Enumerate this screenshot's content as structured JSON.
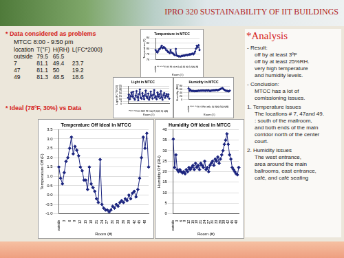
{
  "header": {
    "title": "IPRO 320 SUSTAINABILITY OF IIT BUILDINGS"
  },
  "data_section": {
    "heading": "* Data considered as problems",
    "subheading": "MTCC 8:00 - 9:50 pm",
    "table": {
      "columns": [
        "location",
        "T(°F)",
        "H(RH)",
        "L(FC*2000)"
      ],
      "rows": [
        [
          "outside",
          79.5,
          65.5
        ],
        [
          "7",
          81.1,
          49.4,
          23.7
        ],
        [
          "47",
          81.1,
          50.0,
          19.2
        ],
        [
          "49",
          81.3,
          48.5,
          18.6
        ]
      ]
    }
  },
  "ideal_heading": "* Ideal (78ºF, 30%) vs Data",
  "analysis": {
    "heading": "*Analysis",
    "blocks": [
      {
        "label": "- Result:",
        "lines": [
          "off by at least 3ºF",
          "off by at least 25%RH.",
          "very high temperature",
          "and humidity levels."
        ]
      },
      {
        "label": "- Conclusion:",
        "lines": [
          "MTCC has a lot of",
          "comissioning issues."
        ]
      },
      {
        "label": "1. Temperature issues",
        "lines": [
          "The locations # 7, 47and 49.",
          ": south of the mailroom,",
          "and both ends of the main",
          "corridor north of the center",
          "court."
        ]
      },
      {
        "label": "2. Humidity issues",
        "lines": [
          "The west entrance,",
          "area around the main",
          "ballrooms, east entrance,",
          "café, and café seating"
        ]
      }
    ]
  },
  "chart_data": [
    {
      "type": "line",
      "title": "Temperature in MTCC",
      "x_label": "Room (#)",
      "y_label": "Temperature (F)",
      "categories": [
        "outside",
        null,
        null,
        "3",
        null,
        null,
        "6",
        null,
        null,
        "9",
        null,
        null,
        "12",
        null,
        null,
        "15",
        null,
        null,
        "18",
        null,
        null,
        "21",
        null,
        null,
        "24",
        null,
        null,
        "27",
        null,
        null,
        "30",
        null,
        null,
        "33",
        null,
        null,
        "36",
        null,
        null,
        "39",
        null,
        null,
        "42",
        null,
        null,
        "45",
        null,
        null,
        "48",
        null,
        null
      ],
      "values": [
        79.5,
        78.9,
        78.6,
        79.2,
        79.8,
        80.0,
        80.5,
        81.1,
        80.2,
        80.6,
        80.4,
        80.1,
        79.5,
        79.3,
        78.8,
        78.8,
        78.3,
        79.5,
        78.6,
        78.4,
        78.2,
        77.8,
        77.6,
        79.9,
        77.5,
        77.3,
        77.2,
        77.2,
        77.1,
        77.2,
        77.4,
        77.3,
        77.5,
        77.4,
        77.6,
        77.7,
        77.6,
        77.8,
        77.7,
        78.0,
        77.8,
        78.1,
        78.2,
        77.9,
        78.3,
        78.9,
        80.0,
        81.1,
        80.5,
        81.3,
        79.5
      ],
      "color": "#1a237e",
      "marker": "diamond",
      "line_style": "solid",
      "ylim": [
        76,
        84
      ],
      "yticks": [
        76,
        78,
        80,
        82,
        84
      ],
      "grid": true
    },
    {
      "type": "line",
      "title": "Light in MTCC",
      "x_label": "Room (#)",
      "y_label": "Light (FC*2000)",
      "categories": [
        null,
        null,
        "3",
        null,
        null,
        "6",
        null,
        null,
        "9",
        null,
        null,
        "12",
        null,
        null,
        "15",
        null,
        null,
        "18",
        null,
        null,
        "21",
        null,
        null,
        "24",
        null,
        null,
        "27",
        null,
        null,
        "30",
        null,
        null,
        "33",
        null,
        null,
        "36",
        null,
        null,
        "39",
        null,
        null,
        "42",
        null,
        null,
        "45",
        null,
        null,
        "48",
        null,
        null
      ],
      "values": [
        12,
        18,
        9,
        15,
        22,
        14,
        23.7,
        11,
        8,
        16,
        25,
        13,
        7,
        19,
        28,
        12,
        10,
        21,
        15,
        9,
        17,
        26,
        14,
        11,
        20,
        8,
        13,
        24,
        16,
        10,
        18,
        27,
        12,
        15,
        9,
        22,
        14,
        19,
        11,
        25,
        13,
        8,
        17,
        21,
        12,
        16,
        19.2,
        14,
        18.6,
        10
      ],
      "color": "#1a237e",
      "marker": "diamond",
      "line_style": "solid",
      "ylim": [
        0,
        35
      ],
      "yticks": [
        0,
        5,
        10,
        15,
        20,
        25,
        30,
        35
      ],
      "grid": true
    },
    {
      "type": "line",
      "title": "Humidity in MTCC",
      "x_label": "Room (#)",
      "y_label": "Humidity (RH)",
      "categories": [
        "outside",
        null,
        null,
        "3",
        null,
        null,
        "6",
        null,
        null,
        "9",
        null,
        null,
        "12",
        null,
        null,
        "15",
        null,
        null,
        "18",
        null,
        null,
        "21",
        null,
        null,
        "24",
        null,
        null,
        "27",
        null,
        null,
        "30",
        null,
        null,
        "33",
        null,
        null,
        "36",
        null,
        null,
        "39",
        null,
        null,
        "42",
        null,
        null,
        "45",
        null,
        null,
        "48",
        null,
        null
      ],
      "values": [
        65.5,
        52,
        58,
        51,
        50,
        51,
        50,
        49.4,
        50,
        49,
        51,
        50,
        52,
        51,
        52,
        53,
        51,
        54,
        52,
        53,
        51,
        54,
        53,
        52,
        55,
        51,
        52,
        50,
        53,
        54,
        55,
        53,
        56,
        55,
        57,
        54,
        56,
        58,
        60,
        63,
        65,
        68,
        63,
        58,
        56,
        52,
        51,
        50,
        49,
        48.5,
        52
      ],
      "color": "#1a237e",
      "marker": "diamond",
      "line_style": "solid",
      "ylim": [
        0,
        80
      ],
      "yticks": [
        0,
        20,
        40,
        60,
        80
      ],
      "grid": true
    },
    {
      "type": "line",
      "title": "Temperature Off Ideal in MTCC",
      "x_label": "Room (#)",
      "y_label": "Temperature Off (F)",
      "categories": [
        "outside",
        null,
        null,
        "3",
        null,
        null,
        "6",
        null,
        null,
        "9",
        null,
        null,
        "12",
        null,
        null,
        "15",
        null,
        null,
        "18",
        null,
        null,
        "21",
        null,
        null,
        "24",
        null,
        null,
        "27",
        null,
        null,
        "30",
        null,
        null,
        "33",
        null,
        null,
        "36",
        null,
        null,
        "39",
        null,
        null,
        "42",
        null,
        null,
        "45",
        null,
        null,
        "48",
        null,
        null
      ],
      "values": [
        1.5,
        0.9,
        0.6,
        1.2,
        1.8,
        2.0,
        2.5,
        3.1,
        2.2,
        2.6,
        2.4,
        2.1,
        1.5,
        1.3,
        0.8,
        0.8,
        0.3,
        1.5,
        0.6,
        0.4,
        0.2,
        -0.2,
        -0.4,
        1.9,
        -0.5,
        -0.7,
        -0.8,
        -0.8,
        -0.9,
        -0.8,
        -0.6,
        -0.7,
        -0.5,
        -0.6,
        -0.4,
        -0.3,
        -0.4,
        -0.2,
        -0.3,
        0.0,
        -0.2,
        0.1,
        0.2,
        -0.1,
        0.3,
        0.9,
        2.0,
        3.1,
        2.5,
        3.3,
        1.5
      ],
      "color": "#1a237e",
      "marker": "diamond",
      "line_style": "solid",
      "ylim": [
        -1,
        3.5
      ],
      "yticks": [
        {
          "value": -1,
          "label": "-1.0"
        },
        -0.5,
        {
          "value": 0,
          "label": "0.0"
        },
        0.5,
        {
          "value": 1,
          "label": "1.0"
        },
        1.5,
        {
          "value": 2,
          "label": "2.0"
        },
        2.5,
        {
          "value": 3,
          "label": "3.0"
        },
        3.5
      ],
      "grid": true
    },
    {
      "type": "line",
      "title": "Humidity Off Ideal in MTCC",
      "x_label": "Room (#)",
      "y_label": "Humidity Off (RH)",
      "categories": [
        "outside",
        null,
        null,
        "3",
        null,
        null,
        "6",
        null,
        null,
        "9",
        null,
        null,
        "12",
        null,
        null,
        "15",
        null,
        null,
        "18",
        null,
        null,
        "21",
        null,
        null,
        "24",
        null,
        null,
        "27",
        null,
        null,
        "30",
        null,
        null,
        "33",
        null,
        null,
        "36",
        null,
        null,
        "39",
        null,
        null,
        "42",
        null,
        null,
        "45",
        null,
        null,
        "48",
        null,
        null
      ],
      "values": [
        35.5,
        22,
        28,
        21,
        20,
        21,
        20,
        19.4,
        20,
        19,
        21,
        20,
        22,
        21,
        22,
        23,
        21,
        24,
        22,
        23,
        21,
        24,
        23,
        22,
        25,
        21,
        22,
        20,
        23,
        24,
        25,
        23,
        26,
        25,
        27,
        24,
        26,
        28,
        30,
        33,
        35,
        38,
        33,
        28,
        26,
        22,
        21,
        20,
        19,
        18.5,
        22
      ],
      "color": "#1a237e",
      "marker": "diamond",
      "line_style": "solid",
      "ylim": [
        0,
        40
      ],
      "yticks": [
        0,
        5,
        10,
        15,
        20,
        25,
        30,
        35,
        40
      ],
      "grid": true
    }
  ]
}
